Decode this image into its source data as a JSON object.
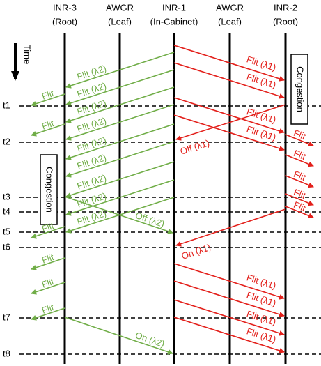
{
  "columns": [
    {
      "name": "INR-3",
      "role": "(Root)"
    },
    {
      "name": "AWGR",
      "role": "(Leaf)"
    },
    {
      "name": "INR-1",
      "role": "(In-Cabinet)"
    },
    {
      "name": "AWGR",
      "role": "(Leaf)"
    },
    {
      "name": "INR-2",
      "role": "(Root)"
    }
  ],
  "time_axis": "Time",
  "time_marks": [
    "t1",
    "t2",
    "t3",
    "t4",
    "t5",
    "t6",
    "t7",
    "t8"
  ],
  "congestion": {
    "inr2": "Congestion",
    "inr3": "Congestion"
  },
  "red_flits": [
    "Flit (λ1)",
    "Flit (λ1)",
    "Flit (λ1)",
    "Flit (λ1)",
    "Flit (λ1)",
    "Flit (λ1)",
    "Flit (λ1)",
    "Flit (λ1)"
  ],
  "red_outgoing": [
    "Flit",
    "Flit",
    "Flit",
    "Flit",
    "Flit"
  ],
  "green_flits": [
    "Flit (λ2)",
    "Flit (λ2)",
    "Flit (λ2)",
    "Flit (λ2)",
    "Flit (λ2)",
    "Flit (λ2)",
    "Flit (λ2)",
    "Flit (λ2)",
    "Flit (λ2)"
  ],
  "green_outgoing": [
    "Flit",
    "Flit",
    "Flit",
    "Flit",
    "Flit",
    "Flit"
  ],
  "control": {
    "off_l1": "Off (λ1)",
    "on_l1": "On (λ1)",
    "off_l2": "Off (λ2)",
    "on_l2": "On (λ2)"
  }
}
